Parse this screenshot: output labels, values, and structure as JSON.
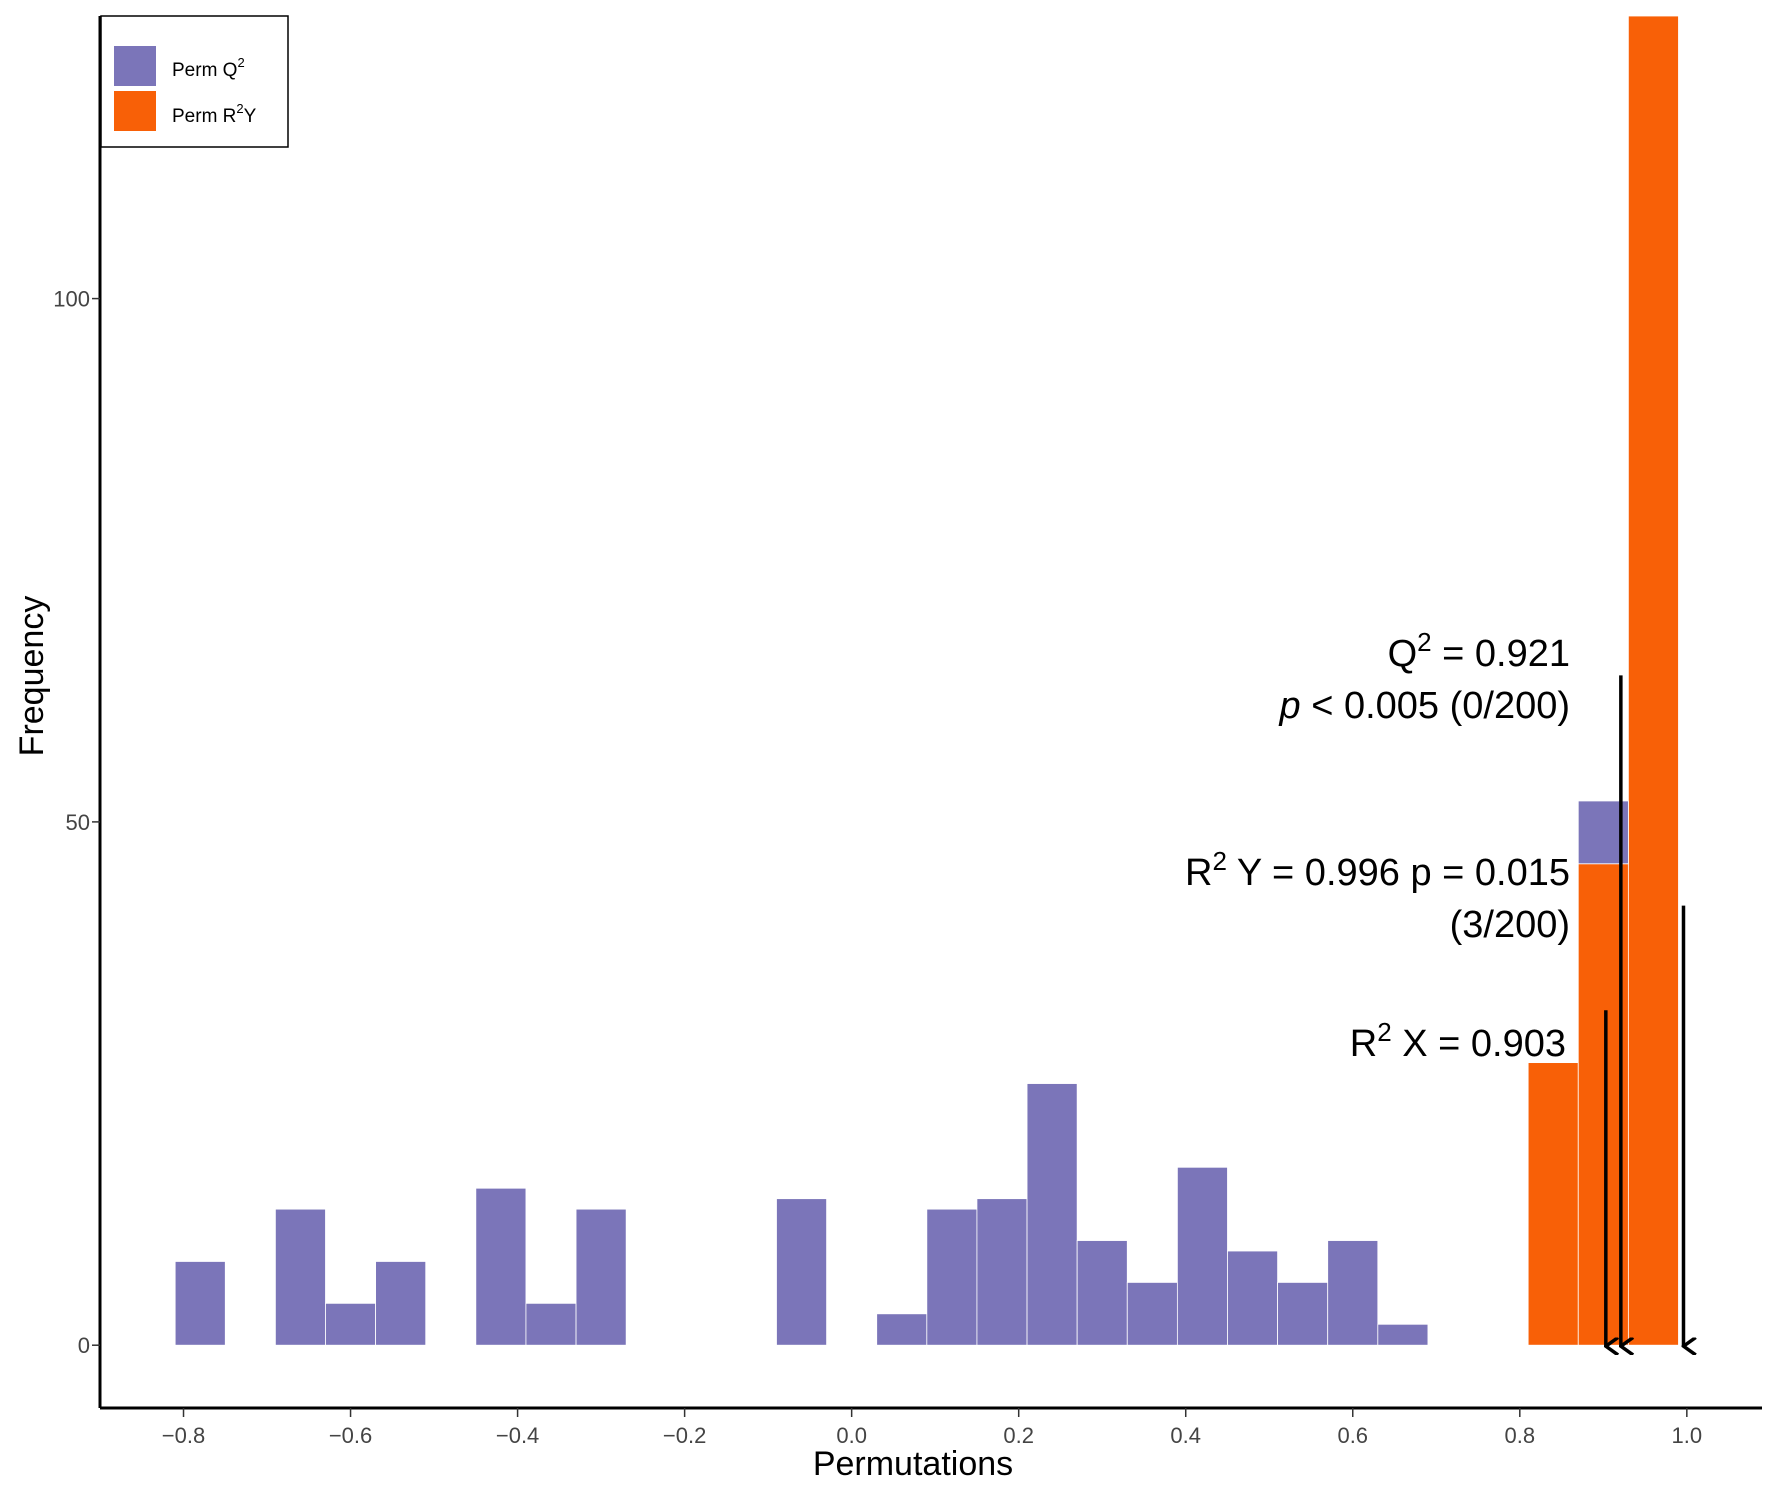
{
  "chart_data": {
    "type": "bar",
    "subtype": "stacked-histogram",
    "title": "",
    "xlabel": "Permutations",
    "ylabel": "Frequency",
    "xlim": [
      -0.9,
      1.09
    ],
    "ylim": [
      -6,
      127
    ],
    "bin_width": 0.06,
    "x_ticks": [
      -0.8,
      -0.6,
      -0.4,
      -0.2,
      0.0,
      0.2,
      0.4,
      0.6,
      0.8,
      1.0
    ],
    "x_tick_labels": [
      "−0.8",
      "−0.6",
      "−0.4",
      "−0.2",
      "0.0",
      "0.2",
      "0.4",
      "0.6",
      "0.8",
      "1.0"
    ],
    "y_ticks": [
      0,
      50,
      100
    ],
    "y_tick_labels": [
      "0",
      "50",
      "100"
    ],
    "colors": {
      "q2": "#7b75b9",
      "r2y": "#f86007",
      "axis": "#000000"
    },
    "legend": {
      "position": "top-left",
      "items": [
        {
          "key": "q2",
          "text": "Perm Q",
          "sup": "2",
          "after": ""
        },
        {
          "key": "r2y",
          "text": "Perm R",
          "sup": "2",
          "after": "Y"
        }
      ]
    },
    "series": [
      {
        "name": "Perm Q2",
        "key": "q2",
        "bins": [
          {
            "x": -0.78,
            "value": 8
          },
          {
            "x": -0.66,
            "value": 13
          },
          {
            "x": -0.6,
            "value": 4
          },
          {
            "x": -0.54,
            "value": 8
          },
          {
            "x": -0.42,
            "value": 15
          },
          {
            "x": -0.36,
            "value": 4
          },
          {
            "x": -0.3,
            "value": 13
          },
          {
            "x": -0.06,
            "value": 14
          },
          {
            "x": 0.06,
            "value": 3
          },
          {
            "x": 0.12,
            "value": 13
          },
          {
            "x": 0.18,
            "value": 14
          },
          {
            "x": 0.24,
            "value": 25
          },
          {
            "x": 0.3,
            "value": 10
          },
          {
            "x": 0.36,
            "value": 6
          },
          {
            "x": 0.42,
            "value": 17
          },
          {
            "x": 0.48,
            "value": 9
          },
          {
            "x": 0.54,
            "value": 6
          },
          {
            "x": 0.6,
            "value": 10
          },
          {
            "x": 0.66,
            "value": 2
          },
          {
            "x": 0.9,
            "value": 6
          }
        ]
      },
      {
        "name": "Perm R2Y",
        "key": "r2y",
        "bins": [
          {
            "x": 0.84,
            "value": 27
          },
          {
            "x": 0.9,
            "value": 46
          },
          {
            "x": 0.96,
            "value": 127
          }
        ]
      }
    ],
    "annotations": [
      {
        "key": "q2",
        "line1_pre": "Q",
        "line1_sup": "2",
        "line1_post": " = 0.921",
        "line2_italic": "p",
        "line2_rest": " < 0.005 (0/200)",
        "x": 0.921,
        "arrow_top": 64
      },
      {
        "key": "r2y",
        "line1_pre": "R",
        "line1_sup": "2",
        "line1_post": " Y = 0.996 p = 0.015",
        "line2": "(3/200)",
        "x": 0.996,
        "arrow_top": 42
      },
      {
        "key": "r2x",
        "line1_pre": "R",
        "line1_sup": "2",
        "line1_post": " X = 0.903",
        "x": 0.903,
        "arrow_top": 32
      }
    ]
  }
}
